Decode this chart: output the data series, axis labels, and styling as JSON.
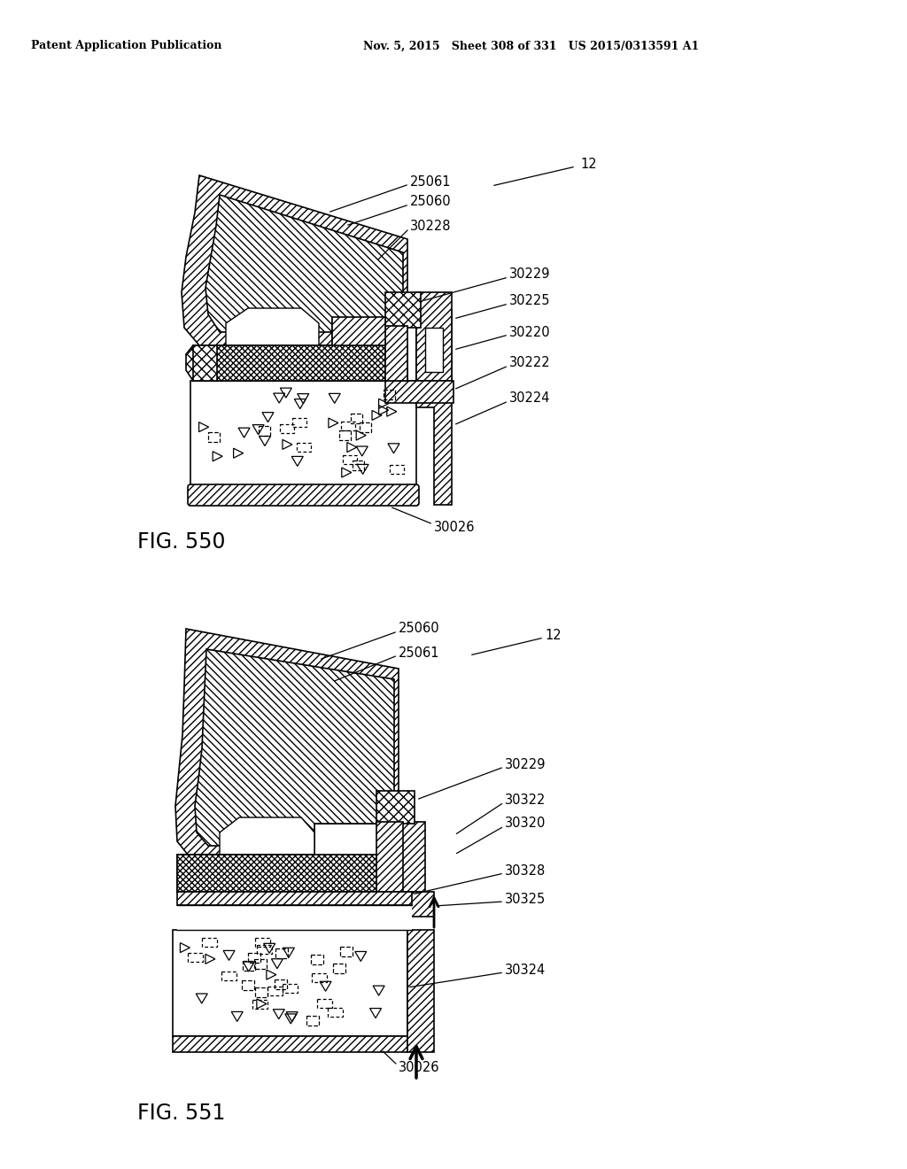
{
  "header_left": "Patent Application Publication",
  "header_mid": "Nov. 5, 2015   Sheet 308 of 331   US 2015/0313591 A1",
  "fig1_label": "FIG. 550",
  "fig2_label": "FIG. 551",
  "bg_color": "#ffffff"
}
